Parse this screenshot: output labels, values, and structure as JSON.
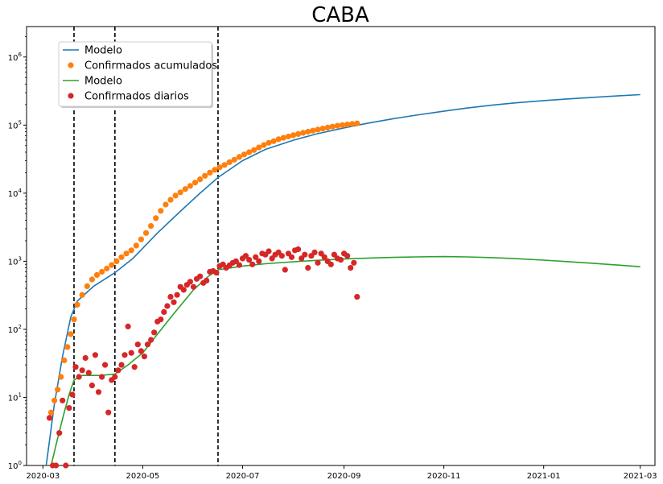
{
  "chart_data": {
    "type": "scatter",
    "title": "CABA",
    "xlabel": "",
    "ylabel": "",
    "y_scale": "log",
    "ylim": [
      1,
      2800000
    ],
    "xlim": [
      "2020-02-20",
      "2021-03-10"
    ],
    "grid": false,
    "legend_position": "upper-left",
    "x_ticks": [
      "2020-03",
      "2020-05",
      "2020-07",
      "2020-09",
      "2020-11",
      "2021-01",
      "2021-03"
    ],
    "y_ticks": [
      {
        "base": "10",
        "exp": "0",
        "value": 1
      },
      {
        "base": "10",
        "exp": "1",
        "value": 10
      },
      {
        "base": "10",
        "exp": "2",
        "value": 100
      },
      {
        "base": "10",
        "exp": "3",
        "value": 1000
      },
      {
        "base": "10",
        "exp": "4",
        "value": 10000
      },
      {
        "base": "10",
        "exp": "5",
        "value": 100000
      },
      {
        "base": "10",
        "exp": "6",
        "value": 1000000
      }
    ],
    "vlines": [
      "2020-03-20",
      "2020-04-14",
      "2020-06-16"
    ],
    "series": [
      {
        "name": "Modelo",
        "kind": "line",
        "color": "#1f77b4",
        "x": [
          "2020-03-03",
          "2020-03-08",
          "2020-03-13",
          "2020-03-18",
          "2020-03-22",
          "2020-04-01",
          "2020-04-14",
          "2020-04-25",
          "2020-05-10",
          "2020-05-25",
          "2020-06-05",
          "2020-06-16",
          "2020-07-01",
          "2020-07-15",
          "2020-08-01",
          "2020-08-15",
          "2020-09-01",
          "2020-09-15",
          "2020-10-01",
          "2020-10-15",
          "2020-11-01",
          "2020-11-15",
          "2020-12-01",
          "2020-12-15",
          "2021-01-01",
          "2021-01-15",
          "2021-02-01",
          "2021-02-15",
          "2021-03-01"
        ],
        "y": [
          1,
          8,
          40,
          150,
          260,
          430,
          680,
          1100,
          2600,
          5700,
          10000,
          17000,
          30000,
          44000,
          60000,
          74000,
          91000,
          106000,
          124000,
          140000,
          160000,
          178000,
          197000,
          212000,
          229000,
          242000,
          256000,
          268000,
          280000
        ]
      },
      {
        "name": "Confirmados acumulados",
        "kind": "scatter",
        "color": "#ff7f0e",
        "x": [
          "2020-03-06",
          "2020-03-08",
          "2020-03-10",
          "2020-03-12",
          "2020-03-14",
          "2020-03-16",
          "2020-03-18",
          "2020-03-20",
          "2020-03-22",
          "2020-03-25",
          "2020-03-28",
          "2020-03-31",
          "2020-04-03",
          "2020-04-06",
          "2020-04-09",
          "2020-04-12",
          "2020-04-15",
          "2020-04-18",
          "2020-04-21",
          "2020-04-24",
          "2020-04-27",
          "2020-04-30",
          "2020-05-03",
          "2020-05-06",
          "2020-05-09",
          "2020-05-12",
          "2020-05-15",
          "2020-05-18",
          "2020-05-21",
          "2020-05-24",
          "2020-05-27",
          "2020-05-30",
          "2020-06-02",
          "2020-06-05",
          "2020-06-08",
          "2020-06-11",
          "2020-06-14",
          "2020-06-17",
          "2020-06-20",
          "2020-06-23",
          "2020-06-26",
          "2020-06-29",
          "2020-07-02",
          "2020-07-05",
          "2020-07-08",
          "2020-07-11",
          "2020-07-14",
          "2020-07-17",
          "2020-07-20",
          "2020-07-23",
          "2020-07-26",
          "2020-07-29",
          "2020-08-01",
          "2020-08-04",
          "2020-08-07",
          "2020-08-10",
          "2020-08-13",
          "2020-08-16",
          "2020-08-19",
          "2020-08-22",
          "2020-08-25",
          "2020-08-28",
          "2020-08-31",
          "2020-09-03",
          "2020-09-06",
          "2020-09-09"
        ],
        "y": [
          6,
          9,
          13,
          20,
          35,
          55,
          85,
          140,
          230,
          320,
          430,
          540,
          630,
          700,
          780,
          880,
          1000,
          1150,
          1300,
          1450,
          1700,
          2100,
          2600,
          3300,
          4300,
          5500,
          6800,
          8000,
          9200,
          10300,
          11500,
          12800,
          14300,
          16000,
          18000,
          20000,
          22000,
          24000,
          26000,
          28500,
          31000,
          34000,
          37000,
          40000,
          43000,
          47000,
          51000,
          55000,
          58000,
          62000,
          65000,
          68000,
          71000,
          74000,
          77000,
          80000,
          83000,
          86000,
          89000,
          92000,
          95000,
          98000,
          100000,
          102000,
          104000,
          106000
        ]
      },
      {
        "name": "Modelo",
        "kind": "line",
        "color": "#2ca02c",
        "x": [
          "2020-03-06",
          "2020-03-10",
          "2020-03-14",
          "2020-03-17",
          "2020-03-20",
          "2020-03-25",
          "2020-04-05",
          "2020-04-14",
          "2020-04-22",
          "2020-05-01",
          "2020-05-10",
          "2020-05-20",
          "2020-06-01",
          "2020-06-10",
          "2020-06-16",
          "2020-07-01",
          "2020-07-15",
          "2020-08-01",
          "2020-08-15",
          "2020-09-01",
          "2020-09-15",
          "2020-10-01",
          "2020-10-15",
          "2020-11-01",
          "2020-11-15",
          "2020-12-01",
          "2020-12-15",
          "2021-01-01",
          "2021-01-15",
          "2021-02-01",
          "2021-02-15",
          "2021-03-01"
        ],
        "y": [
          1,
          2.5,
          6,
          11,
          18,
          21,
          21,
          22,
          30,
          45,
          85,
          170,
          380,
          600,
          750,
          850,
          920,
          980,
          1030,
          1080,
          1110,
          1140,
          1160,
          1170,
          1160,
          1130,
          1090,
          1040,
          990,
          930,
          880,
          830
        ]
      },
      {
        "name": "Confirmados diarios",
        "kind": "scatter",
        "color": "#d62728",
        "x": [
          "2020-03-05",
          "2020-03-07",
          "2020-03-09",
          "2020-03-11",
          "2020-03-13",
          "2020-03-15",
          "2020-03-17",
          "2020-03-19",
          "2020-03-21",
          "2020-03-23",
          "2020-03-25",
          "2020-03-27",
          "2020-03-29",
          "2020-03-31",
          "2020-04-02",
          "2020-04-04",
          "2020-04-06",
          "2020-04-08",
          "2020-04-10",
          "2020-04-12",
          "2020-04-14",
          "2020-04-16",
          "2020-04-18",
          "2020-04-20",
          "2020-04-22",
          "2020-04-24",
          "2020-04-26",
          "2020-04-28",
          "2020-04-30",
          "2020-05-02",
          "2020-05-04",
          "2020-05-06",
          "2020-05-08",
          "2020-05-10",
          "2020-05-12",
          "2020-05-14",
          "2020-05-16",
          "2020-05-18",
          "2020-05-20",
          "2020-05-22",
          "2020-05-24",
          "2020-05-26",
          "2020-05-28",
          "2020-05-30",
          "2020-06-01",
          "2020-06-03",
          "2020-06-05",
          "2020-06-07",
          "2020-06-09",
          "2020-06-11",
          "2020-06-13",
          "2020-06-15",
          "2020-06-17",
          "2020-06-19",
          "2020-06-21",
          "2020-06-23",
          "2020-06-25",
          "2020-06-27",
          "2020-06-29",
          "2020-07-01",
          "2020-07-03",
          "2020-07-05",
          "2020-07-07",
          "2020-07-09",
          "2020-07-11",
          "2020-07-13",
          "2020-07-15",
          "2020-07-17",
          "2020-07-19",
          "2020-07-21",
          "2020-07-23",
          "2020-07-25",
          "2020-07-27",
          "2020-07-29",
          "2020-07-31",
          "2020-08-02",
          "2020-08-04",
          "2020-08-06",
          "2020-08-08",
          "2020-08-10",
          "2020-08-12",
          "2020-08-14",
          "2020-08-16",
          "2020-08-18",
          "2020-08-20",
          "2020-08-22",
          "2020-08-24",
          "2020-08-26",
          "2020-08-28",
          "2020-08-30",
          "2020-09-01",
          "2020-09-03",
          "2020-09-05",
          "2020-09-07",
          "2020-09-09"
        ],
        "y": [
          5,
          1,
          1,
          3,
          9,
          1,
          7,
          11,
          28,
          20,
          25,
          38,
          23,
          15,
          42,
          12,
          20,
          30,
          6,
          18,
          20,
          25,
          30,
          42,
          110,
          45,
          28,
          60,
          48,
          40,
          60,
          70,
          90,
          130,
          140,
          180,
          220,
          300,
          250,
          320,
          420,
          380,
          450,
          500,
          420,
          550,
          600,
          480,
          520,
          700,
          720,
          680,
          850,
          900,
          800,
          870,
          950,
          1000,
          880,
          1100,
          1200,
          1050,
          900,
          1150,
          1000,
          1300,
          1250,
          1400,
          1100,
          1250,
          1350,
          1200,
          750,
          1300,
          1150,
          1450,
          1500,
          1100,
          1250,
          800,
          1200,
          1350,
          950,
          1300,
          1150,
          1000,
          900,
          1250,
          1100,
          1050,
          1300,
          1200,
          800,
          950,
          300
        ]
      }
    ]
  }
}
